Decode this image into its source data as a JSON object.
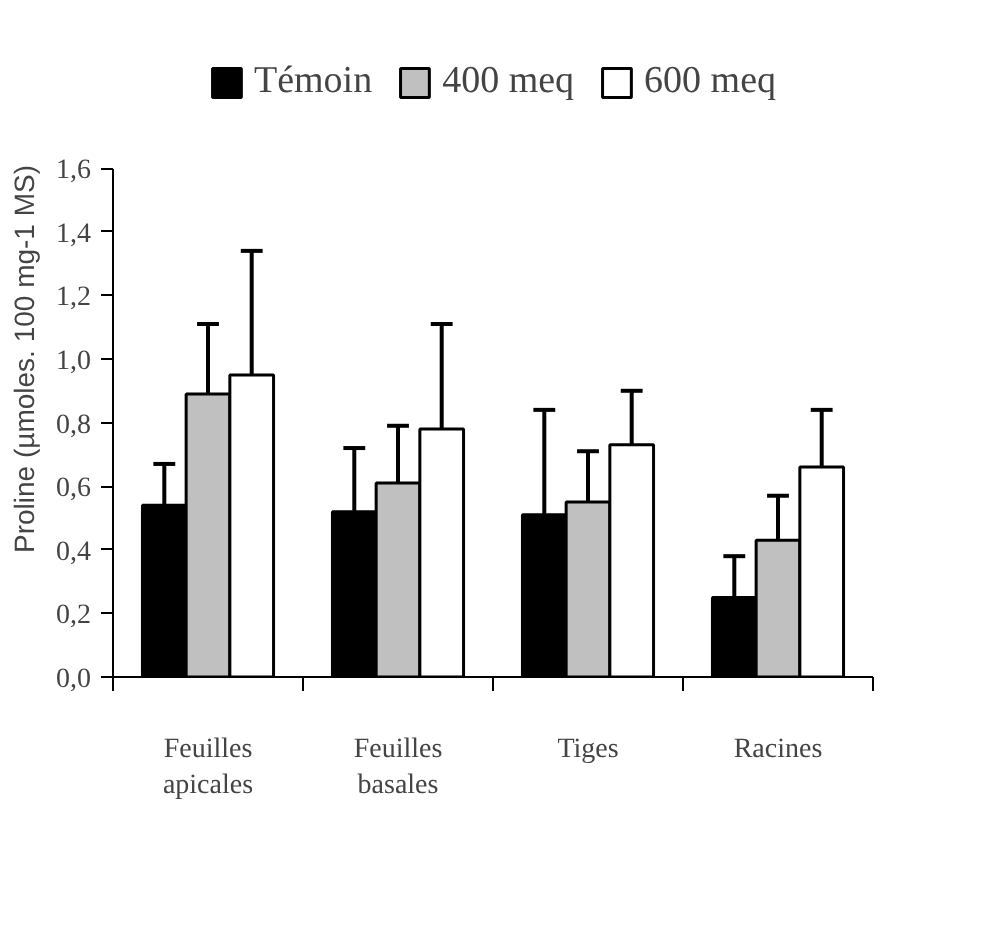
{
  "chart_data": {
    "type": "bar",
    "ylabel": "Proline (µmoles. 100 mg-1 MS)",
    "categories": [
      "Feuilles apicales",
      "Feuilles basales",
      "Tiges",
      "Racines"
    ],
    "series": [
      {
        "name": "Témoin",
        "color": "#000000",
        "values": [
          0.54,
          0.52,
          0.51,
          0.25
        ],
        "errors": [
          [
            0.54,
            0.67
          ],
          [
            0.52,
            0.72
          ],
          [
            0.51,
            0.84
          ],
          [
            0.25,
            0.38
          ]
        ]
      },
      {
        "name": "400 meq",
        "color": "#c0c0c0",
        "values": [
          0.89,
          0.61,
          0.55,
          0.43
        ],
        "errors": [
          [
            0.89,
            1.11
          ],
          [
            0.61,
            0.79
          ],
          [
            0.55,
            0.71
          ],
          [
            0.43,
            0.57
          ]
        ]
      },
      {
        "name": "600 meq",
        "color": "#ffffff",
        "values": [
          0.95,
          0.78,
          0.73,
          0.66
        ],
        "errors": [
          [
            0.95,
            1.34
          ],
          [
            0.78,
            1.11
          ],
          [
            0.73,
            0.9
          ],
          [
            0.66,
            0.84
          ]
        ]
      }
    ],
    "ylim": [
      0,
      1.6
    ],
    "yticks": [
      {
        "value": 0,
        "label": "0,0"
      },
      {
        "value": 0.2,
        "label": "0,2"
      },
      {
        "value": 0.4,
        "label": "0,4"
      },
      {
        "value": 0.6,
        "label": "0,6"
      },
      {
        "value": 0.8,
        "label": "0,8"
      },
      {
        "value": 1.0,
        "label": "1,0"
      },
      {
        "value": 1.2,
        "label": "1,2"
      },
      {
        "value": 1.4,
        "label": "1,4"
      },
      {
        "value": 1.6,
        "label": "1,6"
      }
    ],
    "grid": false,
    "legend": "top"
  }
}
